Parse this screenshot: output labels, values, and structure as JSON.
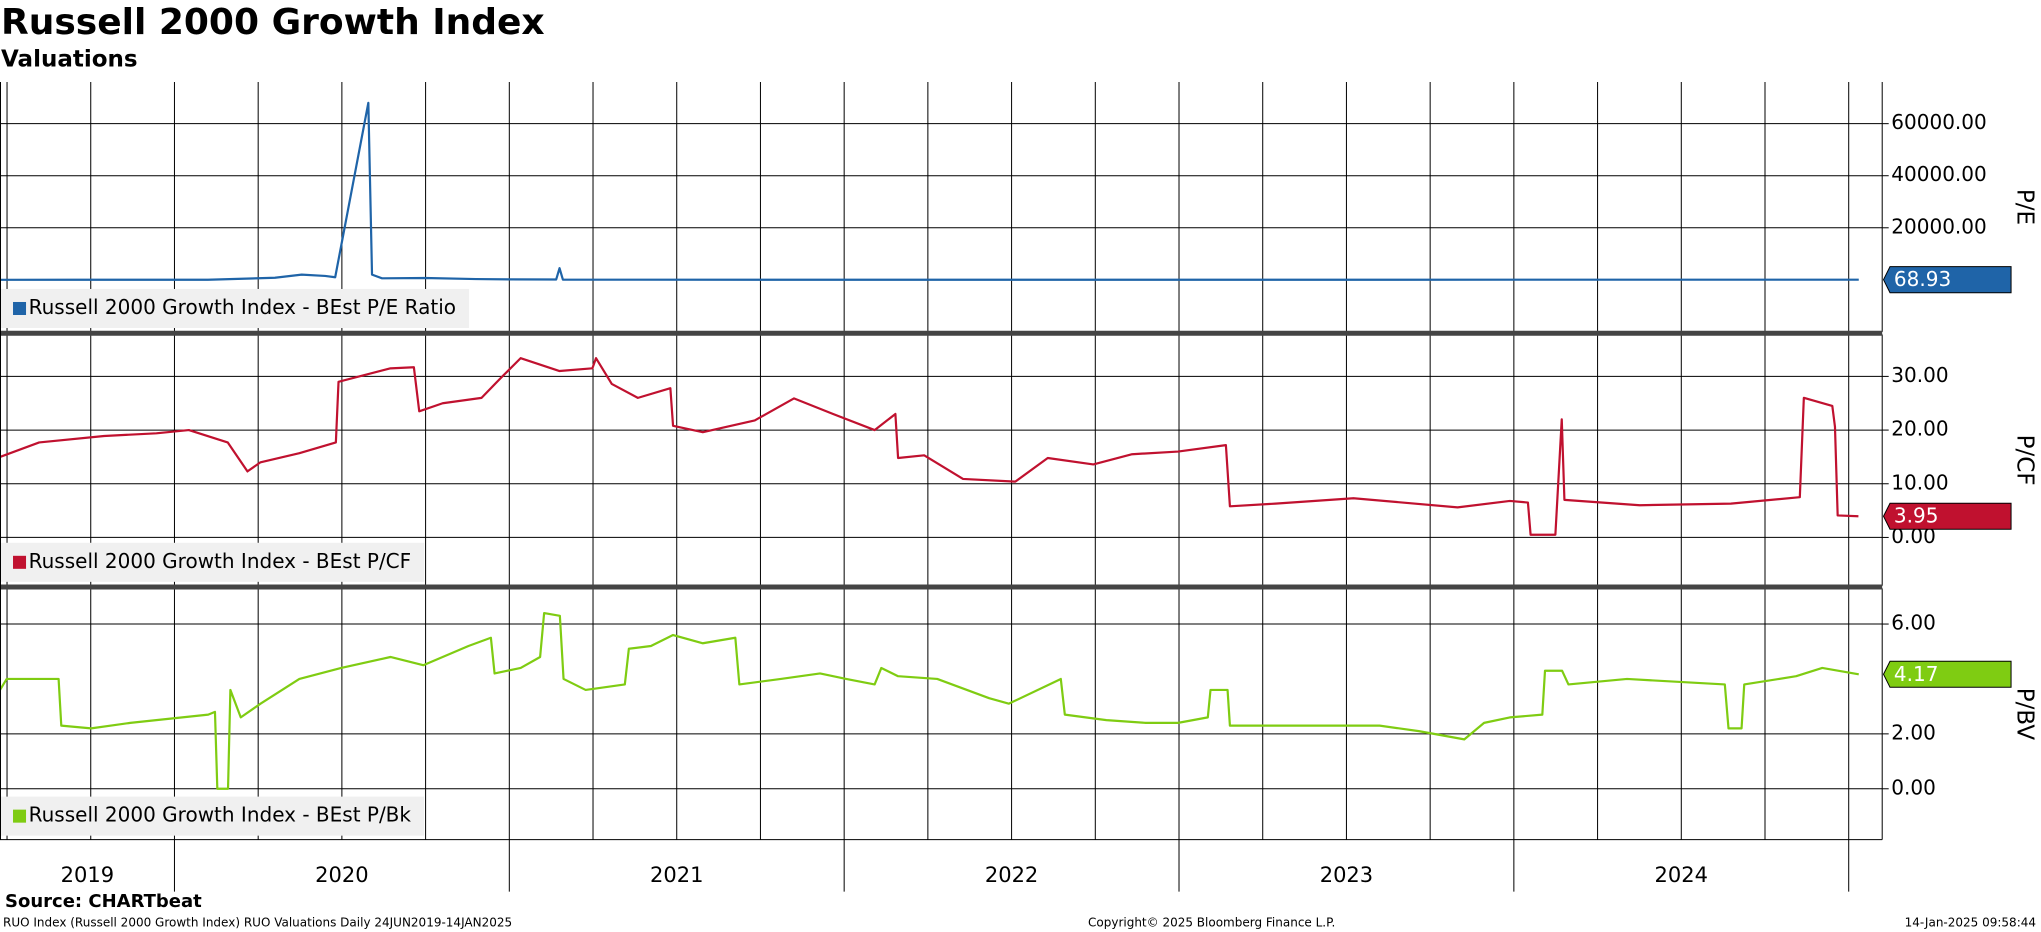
{
  "header": {
    "title": "Russell 2000 Growth Index",
    "subtitle": "Valuations"
  },
  "footer": {
    "source": "Source: CHARTbeat",
    "description": "RUO Index (Russell 2000 Growth Index) RUO Valuations  Daily 24JUN2019-14JAN2025",
    "copyright": "Copyright© 2025 Bloomberg Finance L.P.",
    "timestamp": "14-Jan-2025 09:58:44"
  },
  "chart_data": [
    {
      "type": "line",
      "ylabel": "P/E",
      "xlim": [
        2019.479,
        2025.1
      ],
      "ylim": [
        -20000,
        76000
      ],
      "yticks": [
        {
          "value": 20000,
          "label": "20000.00"
        },
        {
          "value": 40000,
          "label": "40000.00"
        },
        {
          "value": 60000,
          "label": "60000.00"
        }
      ],
      "grid": true,
      "x": [
        2019.479,
        2019.7,
        2019.9,
        2020.1,
        2020.3,
        2020.38,
        2020.45,
        2020.48,
        2020.579,
        2020.59,
        2020.62,
        2020.75,
        2020.9,
        2021.0,
        2021.14,
        2021.15,
        2021.16,
        2021.3,
        2022.0,
        2023.0,
        2024.0,
        2025.03
      ],
      "series": [
        {
          "name": "Russell 2000 Growth Index - BEst P/E Ratio",
          "color": "#1f64a8",
          "values": [
            25,
            28,
            30,
            32,
            800,
            2000,
            1500,
            1000,
            68000,
            2000,
            600,
            700,
            300,
            200,
            150,
            4500,
            100,
            60,
            40,
            45,
            55,
            68.93
          ]
        }
      ]
    },
    {
      "type": "line",
      "ylabel": "P/CF",
      "xlim": [
        2019.479,
        2025.1
      ],
      "ylim": [
        -9,
        37.8
      ],
      "yticks": [
        {
          "value": 0,
          "label": "0.00"
        },
        {
          "value": 10,
          "label": "10.00"
        },
        {
          "value": 20,
          "label": "20.00"
        },
        {
          "value": 30,
          "label": "30.00"
        }
      ],
      "grid": true,
      "x": [
        2019.479,
        2019.596,
        2019.79,
        2019.946,
        2020.043,
        2020.159,
        2020.218,
        2020.257,
        2020.373,
        2020.482,
        2020.49,
        2020.645,
        2020.715,
        2020.731,
        2020.801,
        2020.917,
        2020.976,
        2021.034,
        2021.15,
        2021.248,
        2021.259,
        2021.306,
        2021.384,
        2021.481,
        2021.489,
        2021.578,
        2021.733,
        2021.85,
        2021.967,
        2022.091,
        2022.153,
        2022.161,
        2022.239,
        2022.355,
        2022.511,
        2022.608,
        2022.744,
        2022.86,
        2022.997,
        2023.14,
        2023.152,
        2023.288,
        2023.521,
        2023.832,
        2023.988,
        2024.042,
        2024.05,
        2024.124,
        2024.143,
        2024.151,
        2024.376,
        2024.648,
        2024.854,
        2024.866,
        2024.951,
        2024.959,
        2024.967,
        2025.029
      ],
      "series": [
        {
          "name": "Russell 2000 Growth Index - BEst P/CF",
          "color": "#c0112f",
          "values": [
            15,
            17.7,
            18.9,
            19.4,
            20,
            17.7,
            12.3,
            14,
            15.7,
            17.7,
            29,
            31.5,
            31.7,
            23.5,
            25,
            26,
            29.8,
            33.4,
            31,
            31.5,
            33.4,
            28.6,
            26,
            27.8,
            20.8,
            19.6,
            21.8,
            25.9,
            23,
            20,
            23,
            14.8,
            15.3,
            10.9,
            10.4,
            14.8,
            13.6,
            15.5,
            16,
            17.2,
            5.8,
            6.3,
            7.3,
            5.6,
            6.8,
            6.5,
            0.5,
            0.5,
            22,
            7,
            6,
            6.3,
            7.5,
            26,
            24.5,
            20.6,
            4.1,
            3.95
          ]
        }
      ]
    },
    {
      "type": "line",
      "ylabel": "P/BV",
      "xlim": [
        2019.479,
        2025.1
      ],
      "ylim": [
        -1.85,
        7.3
      ],
      "yticks": [
        {
          "value": 0,
          "label": "0.00"
        },
        {
          "value": 2,
          "label": "2.00"
        },
        {
          "value": 6,
          "label": "6.00"
        }
      ],
      "grid": true,
      "x_grid": [
        2019.5,
        2019.75,
        2020,
        2020.25,
        2020.5,
        2020.75,
        2021,
        2021.25,
        2021.5,
        2021.75,
        2022,
        2022.25,
        2022.5,
        2022.75,
        2023,
        2023.25,
        2023.5,
        2023.75,
        2024,
        2024.25,
        2024.5,
        2024.75,
        2025
      ],
      "xticks": [
        {
          "value": 2019.74,
          "label": "2019"
        },
        {
          "value": 2020.5,
          "label": "2020"
        },
        {
          "value": 2021.5,
          "label": "2021"
        },
        {
          "value": 2022.5,
          "label": "2022"
        },
        {
          "value": 2023.5,
          "label": "2023"
        },
        {
          "value": 2024.5,
          "label": "2024"
        }
      ],
      "x": [
        2019.479,
        2019.499,
        2019.654,
        2019.662,
        2019.751,
        2019.868,
        2020.101,
        2020.121,
        2020.128,
        2020.16,
        2020.167,
        2020.198,
        2020.257,
        2020.373,
        2020.498,
        2020.645,
        2020.743,
        2020.878,
        2020.945,
        2020.956,
        2021.034,
        2021.092,
        2021.104,
        2021.151,
        2021.162,
        2021.228,
        2021.345,
        2021.357,
        2021.423,
        2021.489,
        2021.578,
        2021.675,
        2021.687,
        2021.811,
        2021.928,
        2022.006,
        2022.091,
        2022.111,
        2022.161,
        2022.278,
        2022.433,
        2022.492,
        2022.647,
        2022.659,
        2022.783,
        2022.9,
        2022.997,
        2023.086,
        2023.094,
        2023.145,
        2023.152,
        2023.366,
        2023.599,
        2023.716,
        2023.852,
        2023.911,
        2023.988,
        2024.085,
        2024.093,
        2024.144,
        2024.163,
        2024.338,
        2024.63,
        2024.641,
        2024.68,
        2024.688,
        2024.843,
        2024.921,
        2025.03
      ],
      "series": [
        {
          "name": "Russell 2000 Growth Index - BEst P/Bk",
          "color": "#7fcc12",
          "values": [
            3.6,
            4.0,
            4.0,
            2.3,
            2.2,
            2.4,
            2.7,
            2.8,
            0,
            0,
            3.6,
            2.6,
            3.1,
            4.0,
            4.4,
            4.8,
            4.5,
            5.2,
            5.5,
            4.2,
            4.4,
            4.8,
            6.4,
            6.3,
            4.0,
            3.6,
            3.8,
            5.1,
            5.2,
            5.6,
            5.3,
            5.5,
            3.8,
            4.0,
            4.2,
            4.0,
            3.8,
            4.4,
            4.1,
            4.0,
            3.3,
            3.1,
            4.0,
            2.7,
            2.5,
            2.4,
            2.4,
            2.6,
            3.6,
            3.6,
            2.3,
            2.3,
            2.3,
            2.1,
            1.8,
            2.4,
            2.6,
            2.7,
            4.3,
            4.3,
            3.8,
            4.0,
            3.8,
            2.2,
            2.2,
            3.8,
            4.1,
            4.4,
            4.17
          ]
        }
      ]
    }
  ]
}
